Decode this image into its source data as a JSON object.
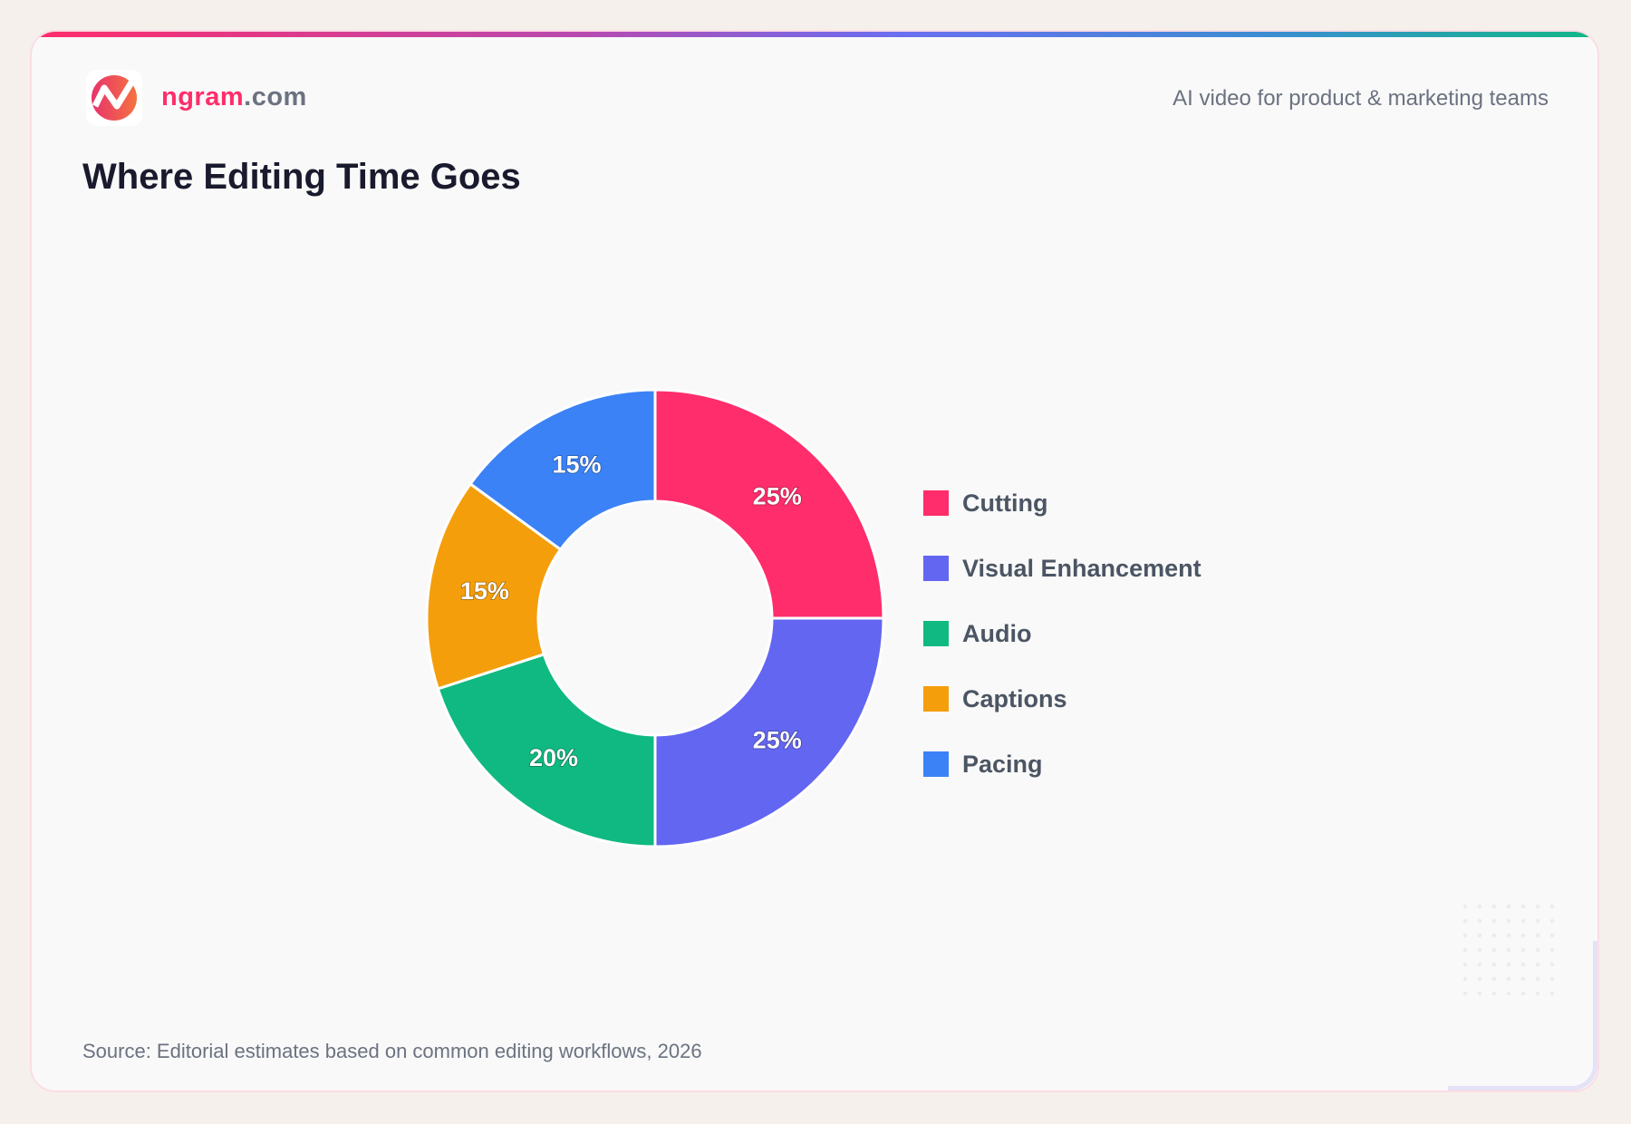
{
  "header": {
    "brand_main": "ngram",
    "brand_suffix": ".com",
    "tagline": "AI video for product & marketing teams",
    "logo_icon": "ngram-logo-icon"
  },
  "title": "Where Editing Time Goes",
  "source": "Source: Editorial estimates based on common editing workflows, 2026",
  "chart_data": {
    "type": "pie",
    "donut": true,
    "start": "top, clockwise",
    "categories": [
      "Cutting",
      "Visual Enhancement",
      "Audio",
      "Captions",
      "Pacing"
    ],
    "values": [
      25,
      25,
      20,
      15,
      15
    ],
    "labels": [
      "25%",
      "25%",
      "20%",
      "15%",
      "15%"
    ],
    "colors": [
      "#ff2d6b",
      "#6366f1",
      "#10b981",
      "#f59e0b",
      "#3b82f6"
    ],
    "legend": "right"
  }
}
